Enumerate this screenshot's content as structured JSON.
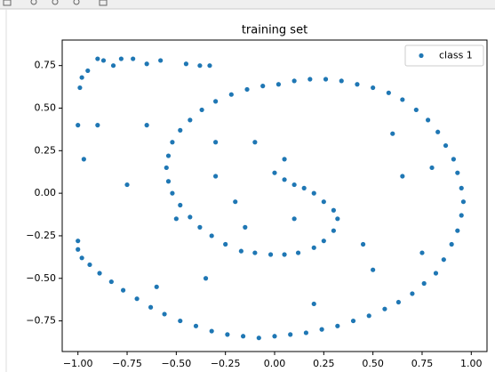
{
  "chart_data": {
    "type": "scatter",
    "title": "training set",
    "series": [
      {
        "name": "class 1",
        "color": "#1f77b4",
        "x": [
          0.0,
          0.05,
          0.1,
          0.15,
          0.2,
          0.25,
          0.3,
          0.32,
          0.3,
          0.25,
          0.2,
          0.12,
          0.05,
          -0.02,
          -0.1,
          -0.17,
          -0.25,
          -0.32,
          -0.38,
          -0.43,
          -0.48,
          -0.52,
          -0.54,
          -0.55,
          -0.54,
          -0.52,
          -0.48,
          -0.43,
          -0.37,
          -0.3,
          -0.22,
          -0.14,
          -0.06,
          0.02,
          0.1,
          0.18,
          0.26,
          0.34,
          0.42,
          0.5,
          0.58,
          0.65,
          0.72,
          0.78,
          0.83,
          0.87,
          0.91,
          0.93,
          0.95,
          0.96,
          0.95,
          0.93,
          0.9,
          0.86,
          0.82,
          0.76,
          0.7,
          0.63,
          0.56,
          0.48,
          0.4,
          0.32,
          0.24,
          0.16,
          0.08,
          0.0,
          -0.08,
          -0.16,
          -0.24,
          -0.32,
          -0.4,
          -0.48,
          -0.56,
          -0.63,
          -0.7,
          -0.77,
          -0.83,
          -0.89,
          -0.94,
          -0.98,
          -1.0,
          -1.0,
          -0.99,
          -0.98,
          -0.95,
          -0.9,
          -0.87,
          -0.82,
          -0.78,
          -0.72,
          -0.65,
          -0.58,
          -0.45,
          -0.38,
          -0.33,
          -1.0,
          -0.9,
          -0.97,
          -0.75,
          -0.65,
          -0.1,
          -0.3,
          -0.2,
          0.1,
          0.45,
          0.6,
          0.8,
          0.5,
          0.75,
          -0.35,
          -0.6,
          -0.3,
          0.05,
          -0.15,
          0.2,
          -0.5,
          0.65
        ],
        "values": [
          0.12,
          0.08,
          0.05,
          0.03,
          0.0,
          -0.05,
          -0.1,
          -0.15,
          -0.22,
          -0.28,
          -0.32,
          -0.35,
          -0.36,
          -0.36,
          -0.35,
          -0.34,
          -0.3,
          -0.25,
          -0.2,
          -0.14,
          -0.07,
          0.0,
          0.07,
          0.15,
          0.22,
          0.3,
          0.37,
          0.43,
          0.49,
          0.54,
          0.58,
          0.61,
          0.63,
          0.64,
          0.66,
          0.67,
          0.67,
          0.66,
          0.64,
          0.62,
          0.59,
          0.55,
          0.49,
          0.43,
          0.36,
          0.28,
          0.2,
          0.12,
          0.03,
          -0.05,
          -0.13,
          -0.22,
          -0.3,
          -0.39,
          -0.47,
          -0.53,
          -0.59,
          -0.64,
          -0.68,
          -0.72,
          -0.75,
          -0.78,
          -0.8,
          -0.82,
          -0.83,
          -0.84,
          -0.85,
          -0.84,
          -0.83,
          -0.81,
          -0.78,
          -0.75,
          -0.71,
          -0.67,
          -0.62,
          -0.57,
          -0.52,
          -0.47,
          -0.42,
          -0.38,
          -0.33,
          -0.28,
          0.62,
          0.68,
          0.72,
          0.79,
          0.78,
          0.75,
          0.79,
          0.79,
          0.76,
          0.78,
          0.76,
          0.75,
          0.75,
          0.4,
          0.4,
          0.2,
          0.05,
          0.4,
          0.3,
          0.1,
          -0.05,
          -0.15,
          -0.3,
          0.35,
          0.15,
          -0.45,
          -0.35,
          -0.5,
          -0.55,
          0.3,
          0.2,
          -0.2,
          -0.65,
          -0.15,
          0.1
        ]
      }
    ],
    "xlim": [
      -1.08,
      1.08
    ],
    "ylim": [
      -0.93,
      0.9
    ],
    "xticks": [
      {
        "value": -1,
        "label": "−1.00"
      },
      {
        "value": -0.75,
        "label": "−0.75"
      },
      {
        "value": -0.5,
        "label": "−0.50"
      },
      {
        "value": -0.25,
        "label": "−0.25"
      },
      {
        "value": 0,
        "label": "0.00"
      },
      {
        "value": 0.25,
        "label": "0.25"
      },
      {
        "value": 0.5,
        "label": "0.50"
      },
      {
        "value": 0.75,
        "label": "0.75"
      },
      {
        "value": 1,
        "label": "1.00"
      }
    ],
    "yticks": [
      {
        "value": -0.75,
        "label": "−0.75"
      },
      {
        "value": -0.5,
        "label": "−0.50"
      },
      {
        "value": -0.25,
        "label": "−0.25"
      },
      {
        "value": 0,
        "label": "0.00"
      },
      {
        "value": 0.25,
        "label": "0.25"
      },
      {
        "value": 0.5,
        "label": "0.50"
      },
      {
        "value": 0.75,
        "label": "0.75"
      }
    ],
    "legend": "upper right"
  }
}
